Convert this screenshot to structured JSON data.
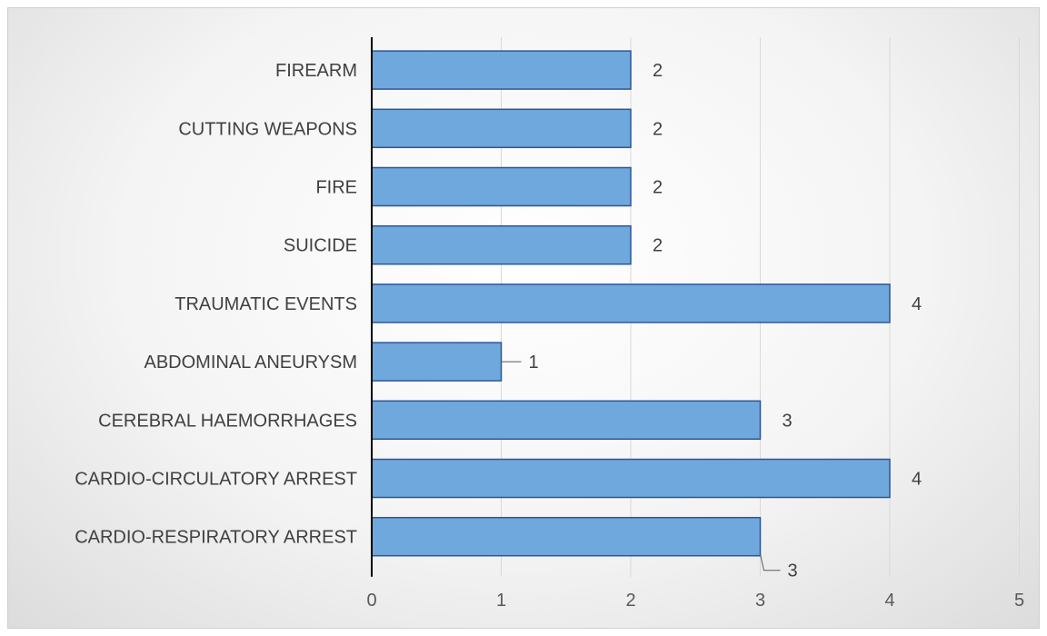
{
  "chart_data": {
    "type": "bar",
    "orientation": "horizontal",
    "categories": [
      "FIREARM",
      "CUTTING WEAPONS",
      "FIRE",
      "SUICIDE",
      "TRAUMATIC EVENTS",
      "ABDOMINAL ANEURYSM",
      "CEREBRAL HAEMORRHAGES",
      "CARDIO-CIRCULATORY ARREST",
      "CARDIO-RESPIRATORY ARREST"
    ],
    "values": [
      2,
      2,
      2,
      2,
      4,
      1,
      3,
      4,
      3
    ],
    "data_labels": [
      "2",
      "2",
      "2",
      "2",
      "4",
      "1",
      "3",
      "4",
      "3"
    ],
    "x_ticks": [
      "0",
      "1",
      "2",
      "3",
      "4",
      "5"
    ],
    "xlim": [
      0,
      5
    ],
    "title": "",
    "xlabel": "",
    "ylabel": "",
    "grid": "vertical",
    "legend": "none",
    "colors": {
      "bar_fill": "#6fa8dc",
      "bar_stroke": "#2f5597",
      "gridline": "#d9d9d9",
      "axis": "#000000"
    }
  }
}
